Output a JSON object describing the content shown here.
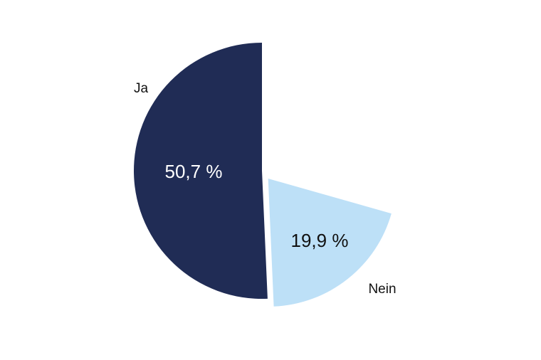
{
  "chart_data": {
    "type": "pie",
    "categories": [
      "Ja",
      "Nein"
    ],
    "values": [
      50.7,
      19.9
    ],
    "value_labels": [
      "50,7 %",
      "19,9 %"
    ],
    "colors": [
      "#202c55",
      "#bde0f7"
    ],
    "value_label_colors": [
      "#ffffff",
      "#111111"
    ]
  }
}
